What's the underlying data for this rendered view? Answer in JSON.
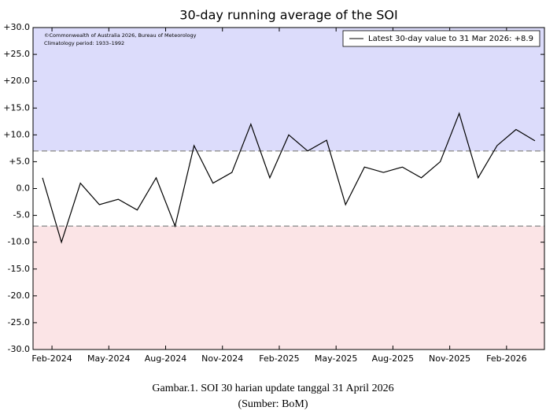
{
  "chart_data": {
    "type": "line",
    "title": "30-day running average of the SOI",
    "notes": [
      "©Commonwealth of Australia 2026, Bureau of Meteorology",
      "Climatology period: 1933–1992"
    ],
    "x": [
      "2024-01",
      "2024-02",
      "2024-03",
      "2024-04",
      "2024-05",
      "2024-06",
      "2024-07",
      "2024-08",
      "2024-09",
      "2024-10",
      "2024-11",
      "2024-12",
      "2025-01",
      "2025-02",
      "2025-03",
      "2025-04",
      "2025-05",
      "2025-06",
      "2025-07",
      "2025-08",
      "2025-09",
      "2025-10",
      "2025-11",
      "2025-12",
      "2026-01",
      "2026-02",
      "2026-03"
    ],
    "series": [
      {
        "name": "Latest 30-day value to 31 Mar 2026: +8.9",
        "color": "#000000",
        "values": [
          2,
          -10,
          1,
          -3,
          -2,
          -4,
          2,
          -7,
          8,
          1,
          3,
          12,
          2,
          10,
          7,
          9,
          -3,
          4,
          3,
          4,
          2,
          5,
          14,
          2,
          8,
          11,
          8.9
        ]
      }
    ],
    "xlim": [
      "2024-01",
      "2026-03"
    ],
    "xticks": [
      {
        "value": "2024-02",
        "label": "Feb-2024"
      },
      {
        "value": "2024-05",
        "label": "May-2024"
      },
      {
        "value": "2024-08",
        "label": "Aug-2024"
      },
      {
        "value": "2024-11",
        "label": "Nov-2024"
      },
      {
        "value": "2025-02",
        "label": "Feb-2025"
      },
      {
        "value": "2025-05",
        "label": "May-2025"
      },
      {
        "value": "2025-08",
        "label": "Aug-2025"
      },
      {
        "value": "2025-11",
        "label": "Nov-2025"
      },
      {
        "value": "2026-02",
        "label": "Feb-2026"
      }
    ],
    "ylim": [
      -30,
      30
    ],
    "yticks": [
      {
        "value": 30,
        "label": "+30.0"
      },
      {
        "value": 25,
        "label": "+25.0"
      },
      {
        "value": 20,
        "label": "+20.0"
      },
      {
        "value": 15,
        "label": "+15.0"
      },
      {
        "value": 10,
        "label": "+10.0"
      },
      {
        "value": 5,
        "label": "+5.0"
      },
      {
        "value": 0,
        "label": "0.0"
      },
      {
        "value": -5,
        "label": "-5.0"
      },
      {
        "value": -10,
        "label": "-10.0"
      },
      {
        "value": -15,
        "label": "-15.0"
      },
      {
        "value": -20,
        "label": "-20.0"
      },
      {
        "value": -25,
        "label": "-25.0"
      },
      {
        "value": -30,
        "label": "-30.0"
      }
    ],
    "reference_lines": [
      7,
      -7
    ],
    "bands": [
      {
        "from": 7,
        "to": 30,
        "color": "#dcdcfb"
      },
      {
        "from": -30,
        "to": -7,
        "color": "#fbe4e6"
      }
    ],
    "legend": "upper right"
  },
  "caption": [
    "Gambar.1. SOI 30 harian update tanggal 31 April 2026",
    "(Sumber: BoM)"
  ]
}
